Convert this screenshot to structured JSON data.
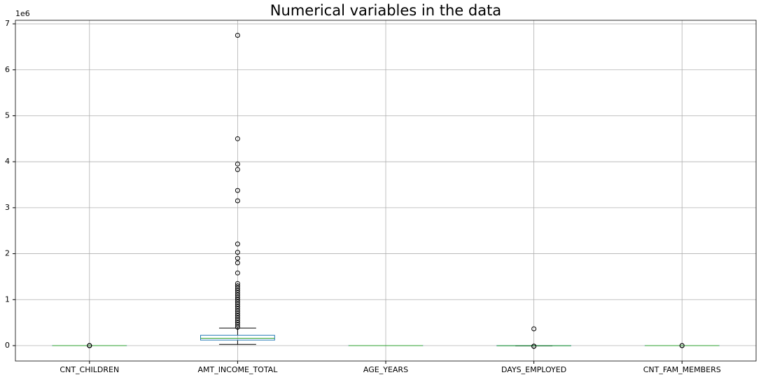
{
  "chart_data": {
    "type": "box",
    "title": "Numerical variables in the data",
    "y_offset_label": "1e6",
    "categories": [
      "CNT_CHILDREN",
      "AMT_INCOME_TOTAL",
      "AGE_YEARS",
      "DAYS_EMPLOYED",
      "CNT_FAM_MEMBERS"
    ],
    "boxes": [
      {
        "min": 0,
        "q1": 0,
        "median": 0,
        "q3": 1e-06,
        "max": 2e-06,
        "outliers": [
          3e-06,
          4e-06,
          5e-06,
          1.9e-05
        ]
      },
      {
        "min": 0.027,
        "q1": 0.12,
        "median": 0.16,
        "q3": 0.225,
        "max": 0.38,
        "outliers": [
          0.4,
          0.45,
          0.5,
          0.55,
          0.6,
          0.65,
          0.7,
          0.75,
          0.8,
          0.85,
          0.9,
          0.95,
          1.0,
          1.05,
          1.1,
          1.15,
          1.2,
          1.25,
          1.3,
          1.35,
          1.58,
          1.8,
          1.9,
          2.03,
          2.21,
          3.15,
          3.375,
          3.83,
          3.95,
          4.5,
          6.75
        ]
      },
      {
        "min": 2.1e-05,
        "q1": 3.4e-05,
        "median": 4.3e-05,
        "q3": 5.3e-05,
        "max": 6.9e-05,
        "outliers": []
      },
      {
        "min": -0.0076,
        "q1": -0.003,
        "median": -0.0015,
        "q3": -0.0004,
        "max": 0,
        "outliers": [
          -0.015,
          -0.012,
          0.365243
        ]
      },
      {
        "min": 1e-06,
        "q1": 2e-06,
        "median": 2e-06,
        "q3": 3e-06,
        "max": 4e-06,
        "outliers": [
          6e-06,
          2e-05
        ]
      }
    ],
    "box_color": "#1f77b4",
    "median_color": "#2ca02c",
    "whisker_color": "#000000",
    "ylim": [
      -0.335,
      7.077
    ],
    "yticks": [
      0,
      1,
      2,
      3,
      4,
      5,
      6,
      7
    ],
    "grid": true
  }
}
